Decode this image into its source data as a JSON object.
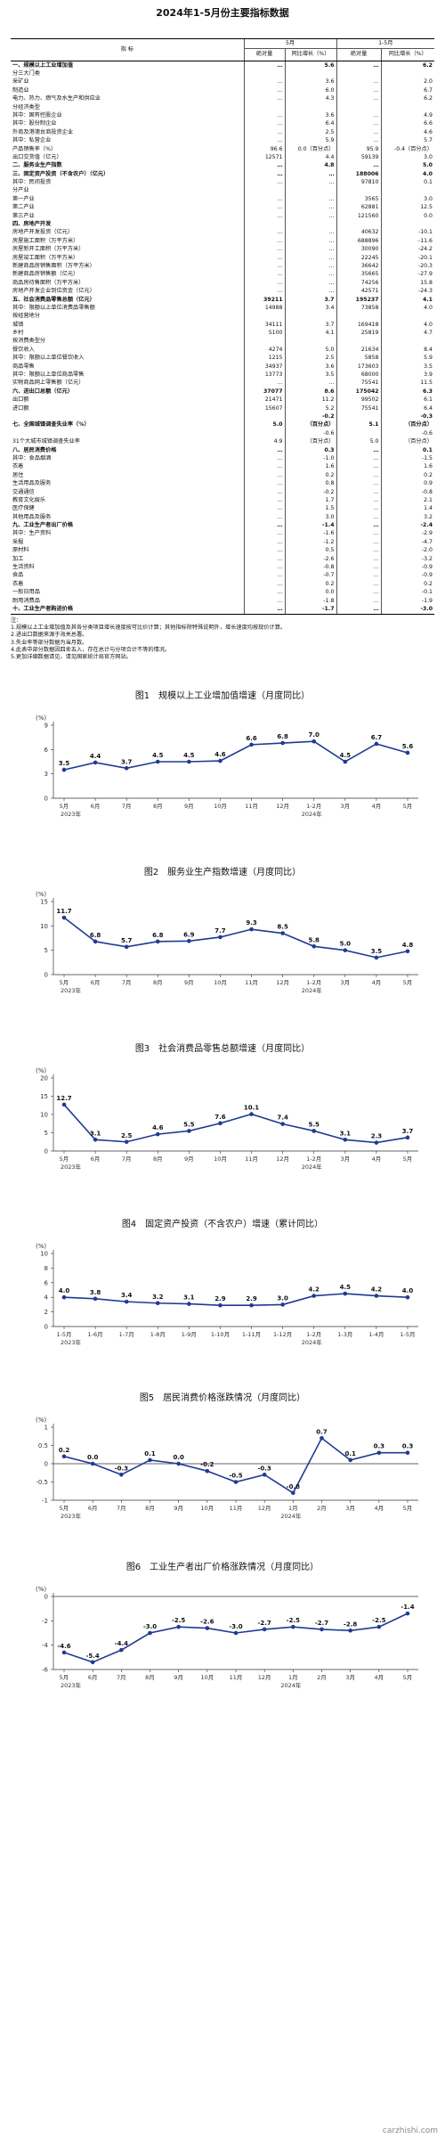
{
  "page_title": "2024年1-5月份主要指标数据",
  "header": {
    "indicator": "指 标",
    "may": "5月",
    "jan_may": "1-5月",
    "abs": "绝对量",
    "growth": "同比增长（%）"
  },
  "rows": [
    {
      "l": "一、规模以上工业增加值",
      "a": "…",
      "b": "5.6",
      "c": "…",
      "d": "6.2",
      "bold": true
    },
    {
      "l": "分三大门类",
      "a": "",
      "b": "",
      "c": "",
      "d": ""
    },
    {
      "l": "采矿业",
      "a": "…",
      "b": "3.6",
      "c": "…",
      "d": "2.0"
    },
    {
      "l": "制造业",
      "a": "…",
      "b": "6.0",
      "c": "…",
      "d": "6.7"
    },
    {
      "l": "电力、热力、燃气及水生产和供应业",
      "a": "…",
      "b": "4.3",
      "c": "…",
      "d": "6.2"
    },
    {
      "l": "分经济类型",
      "a": "",
      "b": "",
      "c": "",
      "d": ""
    },
    {
      "l": "其中：国有控股企业",
      "a": "…",
      "b": "3.6",
      "c": "…",
      "d": "4.9"
    },
    {
      "l": "其中：股份制企业",
      "a": "…",
      "b": "6.4",
      "c": "…",
      "d": "6.6"
    },
    {
      "l": "外商及港澳台商投资企业",
      "a": "…",
      "b": "2.5",
      "c": "…",
      "d": "4.6"
    },
    {
      "l": "其中：私营企业",
      "a": "…",
      "b": "5.9",
      "c": "…",
      "d": "5.7"
    },
    {
      "l": "产品销售率（%）",
      "a": "96.6",
      "b": "0.0（百分点）",
      "c": "95.9",
      "d": "-0.4（百分点）"
    },
    {
      "l": "出口交货值（亿元）",
      "a": "12571",
      "b": "4.4",
      "c": "59139",
      "d": "3.0"
    },
    {
      "l": "二、服务业生产指数",
      "a": "…",
      "b": "4.8",
      "c": "…",
      "d": "5.0",
      "bold": true
    },
    {
      "l": "三、固定资产投资（不含农户）（亿元）",
      "a": "…",
      "b": "…",
      "c": "188006",
      "d": "4.0",
      "bold": true
    },
    {
      "l": "其中：民间投资",
      "a": "…",
      "b": "…",
      "c": "97810",
      "d": "0.1"
    },
    {
      "l": "分产业",
      "a": "",
      "b": "",
      "c": "",
      "d": ""
    },
    {
      "l": "第一产业",
      "a": "…",
      "b": "…",
      "c": "3565",
      "d": "3.0"
    },
    {
      "l": "第二产业",
      "a": "…",
      "b": "…",
      "c": "62881",
      "d": "12.5"
    },
    {
      "l": "第三产业",
      "a": "…",
      "b": "…",
      "c": "121560",
      "d": "0.0"
    },
    {
      "l": "四、房地产开发",
      "a": "",
      "b": "",
      "c": "",
      "d": "",
      "bold": true
    },
    {
      "l": "房地产开发投资（亿元）",
      "a": "…",
      "b": "…",
      "c": "40632",
      "d": "-10.1"
    },
    {
      "l": "房屋施工面积（万平方米）",
      "a": "…",
      "b": "…",
      "c": "688896",
      "d": "-11.6"
    },
    {
      "l": "房屋新开工面积（万平方米）",
      "a": "…",
      "b": "…",
      "c": "30090",
      "d": "-24.2"
    },
    {
      "l": "房屋竣工面积（万平方米）",
      "a": "…",
      "b": "…",
      "c": "22245",
      "d": "-20.1"
    },
    {
      "l": "新建商品房销售面积（万平方米）",
      "a": "…",
      "b": "…",
      "c": "36642",
      "d": "-20.3"
    },
    {
      "l": "新建商品房销售额（亿元）",
      "a": "…",
      "b": "…",
      "c": "35665",
      "d": "-27.9"
    },
    {
      "l": "商品房待售面积（万平方米）",
      "a": "…",
      "b": "…",
      "c": "74256",
      "d": "15.8"
    },
    {
      "l": "房地产开发企业到位资金（亿元）",
      "a": "…",
      "b": "…",
      "c": "42571",
      "d": "-24.3"
    },
    {
      "l": "五、社会消费品零售总额（亿元）",
      "a": "39211",
      "b": "3.7",
      "c": "195237",
      "d": "4.1",
      "bold": true
    },
    {
      "l": "其中：限额以上单位消费品零售额",
      "a": "14988",
      "b": "3.4",
      "c": "73858",
      "d": "4.0"
    },
    {
      "l": "按经营地分",
      "a": "",
      "b": "",
      "c": "",
      "d": ""
    },
    {
      "l": "城镇",
      "a": "34111",
      "b": "3.7",
      "c": "169418",
      "d": "4.0"
    },
    {
      "l": "乡村",
      "a": "5100",
      "b": "4.1",
      "c": "25819",
      "d": "4.7"
    },
    {
      "l": "按消费类型分",
      "a": "",
      "b": "",
      "c": "",
      "d": ""
    },
    {
      "l": "餐饮收入",
      "a": "4274",
      "b": "5.0",
      "c": "21634",
      "d": "8.4"
    },
    {
      "l": "其中：限额以上单位餐饮收入",
      "a": "1215",
      "b": "2.5",
      "c": "5858",
      "d": "5.9"
    },
    {
      "l": "商品零售",
      "a": "34937",
      "b": "3.6",
      "c": "173603",
      "d": "3.5"
    },
    {
      "l": "其中：限额以上单位商品零售",
      "a": "13773",
      "b": "3.5",
      "c": "68000",
      "d": "3.9"
    },
    {
      "l": "实物商品网上零售额（亿元）",
      "a": "…",
      "b": "…",
      "c": "75541",
      "d": "11.5"
    },
    {
      "l": "六、进出口总额（亿元）",
      "a": "37077",
      "b": "8.6",
      "c": "175042",
      "d": "6.3",
      "bold": true
    },
    {
      "l": "出口额",
      "a": "21471",
      "b": "11.2",
      "c": "99502",
      "d": "6.1"
    },
    {
      "l": "进口额",
      "a": "15607",
      "b": "5.2",
      "c": "75541",
      "d": "6.4"
    },
    {
      "l": "",
      "a": "",
      "b": "-0.2",
      "c": "",
      "d": "-0.3",
      "bold": true
    },
    {
      "l": "七、全国城镇调查失业率（%）",
      "a": "5.0",
      "b": "（百分点）",
      "c": "5.1",
      "d": "（百分点）",
      "bold": true
    },
    {
      "l": "",
      "a": "",
      "b": "-0.6",
      "c": "",
      "d": "-0.6"
    },
    {
      "l": "31个大城市城镇调查失业率",
      "a": "4.9",
      "b": "（百分点）",
      "c": "5.0",
      "d": "（百分点）"
    },
    {
      "l": "八、居民消费价格",
      "a": "…",
      "b": "0.3",
      "c": "…",
      "d": "0.1",
      "bold": true
    },
    {
      "l": "其中：食品烟酒",
      "a": "…",
      "b": "-1.0",
      "c": "…",
      "d": "-1.5"
    },
    {
      "l": "衣着",
      "a": "…",
      "b": "1.6",
      "c": "…",
      "d": "1.6"
    },
    {
      "l": "居住",
      "a": "…",
      "b": "0.2",
      "c": "…",
      "d": "0.2"
    },
    {
      "l": "生活用品及服务",
      "a": "…",
      "b": "0.8",
      "c": "…",
      "d": "0.9"
    },
    {
      "l": "交通通信",
      "a": "…",
      "b": "-0.2",
      "c": "…",
      "d": "-0.8"
    },
    {
      "l": "教育文化娱乐",
      "a": "…",
      "b": "1.7",
      "c": "…",
      "d": "2.1"
    },
    {
      "l": "医疗保健",
      "a": "…",
      "b": "1.5",
      "c": "…",
      "d": "1.4"
    },
    {
      "l": "其他用品及服务",
      "a": "…",
      "b": "3.0",
      "c": "…",
      "d": "3.2"
    },
    {
      "l": "九、工业生产者出厂价格",
      "a": "…",
      "b": "-1.4",
      "c": "…",
      "d": "-2.4",
      "bold": true
    },
    {
      "l": "其中：生产资料",
      "a": "…",
      "b": "-1.6",
      "c": "…",
      "d": "-2.9"
    },
    {
      "l": "采掘",
      "a": "…",
      "b": "-1.2",
      "c": "…",
      "d": "-4.7"
    },
    {
      "l": "原材料",
      "a": "…",
      "b": "0.5",
      "c": "…",
      "d": "-2.0"
    },
    {
      "l": "加工",
      "a": "…",
      "b": "-2.6",
      "c": "…",
      "d": "-3.2"
    },
    {
      "l": "生活资料",
      "a": "…",
      "b": "-0.8",
      "c": "…",
      "d": "-0.9"
    },
    {
      "l": "食品",
      "a": "…",
      "b": "-0.7",
      "c": "…",
      "d": "-0.9"
    },
    {
      "l": "衣着",
      "a": "…",
      "b": "0.2",
      "c": "…",
      "d": "0.2"
    },
    {
      "l": "一般日用品",
      "a": "…",
      "b": "0.0",
      "c": "…",
      "d": "-0.1"
    },
    {
      "l": "耐用消费品",
      "a": "…",
      "b": "-1.8",
      "c": "…",
      "d": "-1.9"
    },
    {
      "l": "十、工业生产者购进价格",
      "a": "…",
      "b": "-1.7",
      "c": "…",
      "d": "-3.0",
      "bold": true
    }
  ],
  "notes": [
    "注：",
    "1.规模以上工业增加值及其各分类项目增长速度按可比价计算；其他指标除特殊说明外，增长速度均按现价计算。",
    "2.进出口数据来源于海关总署。",
    "3.失业率等部分数据为当月数。",
    "4.此表中部分数据因四舍五入，存在总计与分项合计不等的情况。",
    "5.更加详细数据请见，请见国家统计局官方网站。"
  ],
  "chart_data": [
    {
      "type": "line",
      "title": "图1　规模以上工业增加值增速（月度同比）",
      "ylabel": "(%)",
      "ylim": [
        0,
        9
      ],
      "yticks": [
        0,
        3,
        6,
        9
      ],
      "categories": [
        "5月",
        "6月",
        "7月",
        "8月",
        "9月",
        "10月",
        "11月",
        "12月",
        "1-2月",
        "3月",
        "4月",
        "5月"
      ],
      "values": [
        3.5,
        4.4,
        3.7,
        4.5,
        4.5,
        4.6,
        6.6,
        6.8,
        7.0,
        4.5,
        6.7,
        5.6
      ],
      "year_left": "2023年",
      "year_right": "2024年"
    },
    {
      "type": "line",
      "title": "图2　服务业生产指数增速（月度同比）",
      "ylabel": "(%)",
      "ylim": [
        0,
        15
      ],
      "yticks": [
        0,
        5,
        10,
        15
      ],
      "categories": [
        "5月",
        "6月",
        "7月",
        "8月",
        "9月",
        "10月",
        "11月",
        "12月",
        "1-2月",
        "3月",
        "4月",
        "5月"
      ],
      "values": [
        11.7,
        6.8,
        5.7,
        6.8,
        6.9,
        7.7,
        9.3,
        8.5,
        5.8,
        5.0,
        3.5,
        4.8
      ],
      "year_left": "2023年",
      "year_right": "2024年"
    },
    {
      "type": "line",
      "title": "图3　社会消费品零售总额增速（月度同比）",
      "ylabel": "(%)",
      "ylim": [
        0,
        20
      ],
      "yticks": [
        0,
        5,
        10,
        15,
        20
      ],
      "categories": [
        "5月",
        "6月",
        "7月",
        "8月",
        "9月",
        "10月",
        "11月",
        "12月",
        "1-2月",
        "3月",
        "4月",
        "5月"
      ],
      "values": [
        12.7,
        3.1,
        2.5,
        4.6,
        5.5,
        7.6,
        10.1,
        7.4,
        5.5,
        3.1,
        2.3,
        3.7
      ],
      "year_left": "2023年",
      "year_right": "2024年"
    },
    {
      "type": "line",
      "title": "图4　固定资产投资（不含农户）增速（累计同比）",
      "ylabel": "(%)",
      "ylim": [
        0,
        10
      ],
      "yticks": [
        0,
        2,
        4,
        6,
        8,
        10
      ],
      "categories": [
        "1-5月",
        "1-6月",
        "1-7月",
        "1-8月",
        "1-9月",
        "1-10月",
        "1-11月",
        "1-12月",
        "1-2月",
        "1-3月",
        "1-4月",
        "1-5月"
      ],
      "values": [
        4.0,
        3.8,
        3.4,
        3.2,
        3.1,
        2.9,
        2.9,
        3.0,
        4.2,
        4.5,
        4.2,
        4.0
      ],
      "year_left": "2023年",
      "year_right": "2024年"
    },
    {
      "type": "line",
      "title": "图5　居民消费价格涨跌情况（月度同比）",
      "ylabel": "(%)",
      "ylim": [
        -1,
        1
      ],
      "yticks": [
        -1,
        -0.5,
        0,
        0.5,
        1
      ],
      "categories": [
        "5月",
        "6月",
        "7月",
        "8月",
        "9月",
        "10月",
        "11月",
        "12月",
        "1月",
        "2月",
        "3月",
        "4月",
        "5月"
      ],
      "values": [
        0.2,
        0.0,
        -0.3,
        0.1,
        0.0,
        -0.2,
        -0.5,
        -0.3,
        -0.8,
        0.7,
        0.1,
        0.3,
        0.3
      ],
      "year_left": "2023年",
      "year_right": "2024年"
    },
    {
      "type": "line",
      "title": "图6　工业生产者出厂价格涨跌情况（月度同比）",
      "ylabel": "(%)",
      "ylim": [
        -6,
        0
      ],
      "yticks": [
        -6,
        -4,
        -2,
        0
      ],
      "categories": [
        "5月",
        "6月",
        "7月",
        "8月",
        "9月",
        "10月",
        "11月",
        "12月",
        "1月",
        "2月",
        "3月",
        "4月",
        "5月"
      ],
      "values": [
        -4.6,
        -5.4,
        -4.4,
        -3.0,
        -2.5,
        -2.6,
        -3.0,
        -2.7,
        -2.5,
        -2.7,
        -2.8,
        -2.5,
        -1.4
      ],
      "year_left": "2023年",
      "year_right": "2024年"
    }
  ],
  "watermark": "carzhishi.com"
}
